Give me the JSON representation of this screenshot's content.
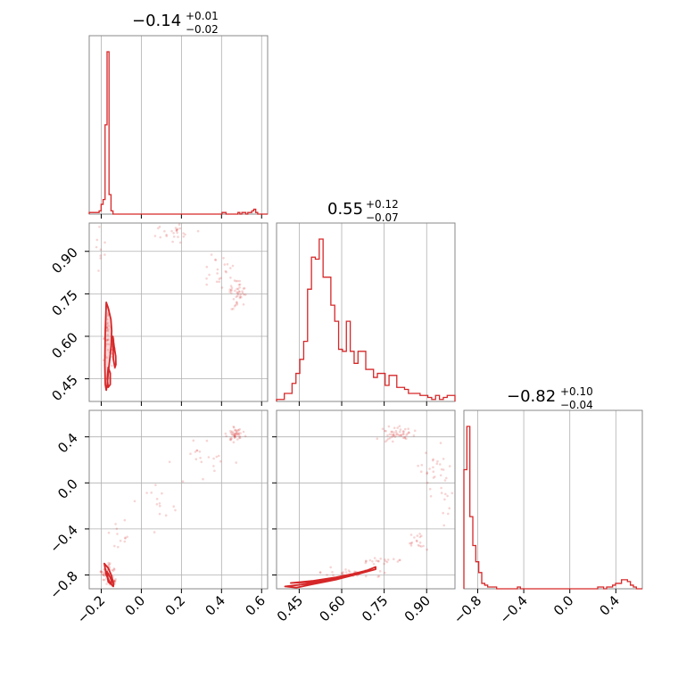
{
  "chart_data": {
    "type": "corner",
    "color": "#d62728",
    "grid": true,
    "params": [
      {
        "median": "−0.14",
        "upper": "+0.01",
        "lower": "−0.02",
        "range": [
          -0.26,
          0.63
        ]
      },
      {
        "median": "0.55",
        "upper": "+0.12",
        "lower": "−0.07",
        "range": [
          0.37,
          1.0
        ]
      },
      {
        "median": "−0.82",
        "upper": "+0.10",
        "lower": "−0.04",
        "range": [
          -0.92,
          0.63
        ]
      }
    ],
    "ticks": [
      {
        "values": [
          -0.2,
          0.0,
          0.2,
          0.4,
          0.6
        ],
        "labels": [
          "−0.2",
          "0.0",
          "0.2",
          "0.4",
          "0.6"
        ]
      },
      {
        "values": [
          0.45,
          0.6,
          0.75,
          0.9
        ],
        "labels": [
          "0.45",
          "0.60",
          "0.75",
          "0.90"
        ]
      },
      {
        "values": [
          -0.8,
          -0.4,
          0.0,
          0.4
        ],
        "labels": [
          "−0.8",
          "−0.4",
          "0.0",
          "0.4"
        ]
      }
    ],
    "histograms": [
      {
        "range": [
          -0.26,
          0.63
        ],
        "counts": [
          1,
          1,
          1,
          1,
          1,
          2,
          6,
          9,
          55,
          100,
          12,
          2,
          0,
          0,
          0,
          0,
          0,
          0,
          0,
          0,
          0,
          0,
          0,
          0,
          0,
          0,
          0,
          0,
          0,
          0,
          0,
          0,
          0,
          0,
          0,
          0,
          0,
          0,
          0,
          0,
          0,
          0,
          0,
          0,
          0,
          0,
          0,
          0,
          0,
          0,
          0,
          0,
          0,
          0,
          0,
          0,
          0,
          0,
          0,
          0,
          0,
          0,
          0,
          0,
          0,
          0,
          0,
          1,
          1,
          0,
          0,
          0,
          0,
          0,
          0,
          1,
          0,
          1,
          1,
          0,
          1,
          1,
          2,
          3,
          1,
          0,
          0,
          0,
          0,
          0
        ]
      },
      {
        "range": [
          0.37,
          1.0
        ],
        "counts": [
          1,
          1,
          4,
          4,
          9,
          14,
          21,
          30,
          56,
          72,
          71,
          81,
          62,
          62,
          48,
          40,
          26,
          25,
          40,
          25,
          19,
          25,
          25,
          16,
          16,
          12,
          14,
          14,
          8,
          13,
          13,
          7,
          7,
          6,
          4,
          4,
          4,
          3,
          3,
          2,
          1,
          3,
          1,
          2,
          3,
          3
        ]
      },
      {
        "range": [
          -0.92,
          0.63
        ],
        "counts": [
          66,
          90,
          40,
          24,
          15,
          9,
          3,
          2,
          1,
          1,
          1,
          0,
          0,
          0,
          0,
          0,
          0,
          0,
          1,
          0,
          0,
          0,
          0,
          0,
          0,
          0,
          0,
          0,
          0,
          0,
          0,
          0,
          0,
          0,
          0,
          0,
          0,
          0,
          0,
          0,
          0,
          0,
          0,
          0,
          0,
          1,
          1,
          0,
          1,
          1,
          2,
          3,
          3,
          5,
          5,
          4,
          2,
          1,
          0,
          0
        ]
      }
    ],
    "contours": [
      {
        "panel": "p1_vs_p0",
        "x": [
          -0.175,
          -0.165,
          -0.152,
          -0.148,
          -0.15,
          -0.157,
          -0.165,
          -0.17,
          -0.175,
          -0.18,
          -0.182,
          -0.18,
          -0.175
        ],
        "y": [
          0.72,
          0.7,
          0.66,
          0.62,
          0.57,
          0.52,
          0.47,
          0.43,
          0.41,
          0.43,
          0.5,
          0.62,
          0.72
        ]
      },
      {
        "panel": "p1_vs_p0",
        "x": [
          -0.142,
          -0.135,
          -0.128,
          -0.127,
          -0.132,
          -0.14,
          -0.142
        ],
        "y": [
          0.6,
          0.56,
          0.53,
          0.5,
          0.49,
          0.52,
          0.6
        ]
      },
      {
        "panel": "p1_vs_p0",
        "x": [
          -0.165,
          -0.155,
          -0.155,
          -0.165,
          -0.17,
          -0.165
        ],
        "y": [
          0.49,
          0.47,
          0.43,
          0.42,
          0.45,
          0.49
        ]
      },
      {
        "panel": "p2_vs_p0",
        "x": [
          -0.185,
          -0.165,
          -0.15,
          -0.138,
          -0.14,
          -0.155,
          -0.175,
          -0.185
        ],
        "y": [
          -0.7,
          -0.74,
          -0.8,
          -0.88,
          -0.9,
          -0.87,
          -0.8,
          -0.7
        ]
      },
      {
        "panel": "p2_vs_p0",
        "x": [
          -0.172,
          -0.158,
          -0.148,
          -0.152,
          -0.165,
          -0.172
        ],
        "y": [
          -0.77,
          -0.81,
          -0.85,
          -0.88,
          -0.86,
          -0.77
        ]
      },
      {
        "panel": "p2_vs_p1",
        "x": [
          0.4,
          0.47,
          0.55,
          0.62,
          0.68,
          0.72,
          0.72,
          0.66,
          0.58,
          0.5,
          0.44,
          0.4
        ],
        "y": [
          -0.9,
          -0.88,
          -0.85,
          -0.81,
          -0.77,
          -0.73,
          -0.75,
          -0.79,
          -0.84,
          -0.88,
          -0.91,
          -0.9
        ]
      },
      {
        "panel": "p2_vs_p1",
        "x": [
          0.42,
          0.5,
          0.58,
          0.64,
          0.69,
          0.66,
          0.58,
          0.5,
          0.42
        ],
        "y": [
          -0.87,
          -0.85,
          -0.82,
          -0.79,
          -0.76,
          -0.79,
          -0.83,
          -0.86,
          -0.87
        ]
      }
    ]
  }
}
